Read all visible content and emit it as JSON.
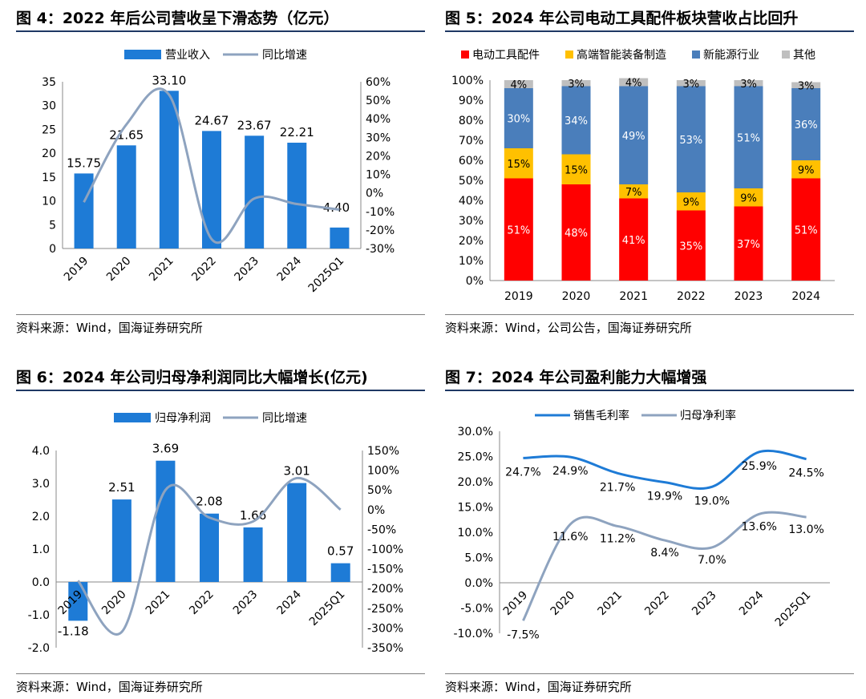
{
  "colors": {
    "bar": "#1e7bd6",
    "growth_line": "#8ea3bf",
    "red": "#ff0000",
    "yellow": "#ffc000",
    "blue": "#4a7ebb",
    "gray": "#bfbfbf",
    "gross_margin": "#1e7bd6",
    "net_margin": "#8ea3bf"
  },
  "panels": [
    {
      "title": "图 4：2022 年后公司营收呈下滑态势（亿元）",
      "source": "资料来源：Wind，国海证券研究所"
    },
    {
      "title": "图 5：2024 年公司电动工具配件板块营收占比回升",
      "source": "资料来源：Wind，公司公告，国海证券研究所"
    },
    {
      "title": "图 6：2024 年公司归母净利润同比大幅增长(亿元)",
      "source": "资料来源：Wind，国海证券研究所"
    },
    {
      "title": "图 7：2024 年公司盈利能力大幅增强",
      "source": "资料来源：Wind，国海证券研究所"
    }
  ],
  "chart_data": [
    {
      "type": "bar",
      "categories": [
        "2019",
        "2020",
        "2021",
        "2022",
        "2023",
        "2024",
        "2025Q1"
      ],
      "series": [
        {
          "name": "营业收入",
          "type": "bar",
          "axis": "left",
          "values": [
            15.75,
            21.65,
            33.1,
            24.67,
            23.67,
            22.21,
            4.4
          ],
          "labels": [
            "15.75",
            "21.65",
            "33.10",
            "24.67",
            "23.67",
            "22.21",
            "4.40"
          ]
        },
        {
          "name": "同比增速",
          "type": "line",
          "axis": "right",
          "values": [
            -5,
            37,
            53,
            -25,
            -3,
            -6,
            -9
          ]
        }
      ],
      "ylim": [
        0,
        35
      ],
      "yticks": [
        "0",
        "5",
        "10",
        "15",
        "20",
        "25",
        "30",
        "35"
      ],
      "ylim_right": [
        -30,
        60
      ],
      "yticks_right": [
        "-30%",
        "-20%",
        "-10%",
        "0%",
        "10%",
        "20%",
        "30%",
        "40%",
        "50%",
        "60%"
      ],
      "legend": "top"
    },
    {
      "type": "bar",
      "stacked": true,
      "categories": [
        "2019",
        "2020",
        "2021",
        "2022",
        "2023",
        "2024"
      ],
      "series": [
        {
          "name": "电动工具配件",
          "values": [
            51,
            48,
            41,
            35,
            37,
            51
          ]
        },
        {
          "name": "高端智能装备制造",
          "values": [
            15,
            15,
            7,
            9,
            9,
            9
          ]
        },
        {
          "name": "新能源行业",
          "values": [
            30,
            34,
            49,
            53,
            51,
            36
          ]
        },
        {
          "name": "其他",
          "values": [
            4,
            3,
            4,
            3,
            3,
            3
          ]
        }
      ],
      "ylim": [
        0,
        100
      ],
      "yticks": [
        "0%",
        "10%",
        "20%",
        "30%",
        "40%",
        "50%",
        "60%",
        "70%",
        "80%",
        "90%",
        "100%"
      ],
      "legend": "top"
    },
    {
      "type": "bar",
      "categories": [
        "2019",
        "2020",
        "2021",
        "2022",
        "2023",
        "2024",
        "2025Q1"
      ],
      "series": [
        {
          "name": "归母净利润",
          "type": "bar",
          "axis": "left",
          "values": [
            -1.18,
            2.51,
            3.69,
            2.08,
            1.66,
            3.01,
            0.57
          ],
          "labels": [
            "-1.18",
            "2.51",
            "3.69",
            "2.08",
            "1.66",
            "3.01",
            "0.57"
          ]
        },
        {
          "name": "同比增速",
          "type": "line",
          "axis": "right",
          "values": [
            -180,
            -310,
            50,
            -20,
            -30,
            80,
            0
          ]
        }
      ],
      "ylim": [
        -2.0,
        4.0
      ],
      "yticks": [
        "-2.0",
        "-1.0",
        "0.0",
        "1.0",
        "2.0",
        "3.0",
        "4.0"
      ],
      "ylim_right": [
        -350,
        150
      ],
      "yticks_right": [
        "-350%",
        "-300%",
        "-250%",
        "-200%",
        "-150%",
        "-100%",
        "-50%",
        "0%",
        "50%",
        "100%",
        "150%"
      ],
      "legend": "top"
    },
    {
      "type": "line",
      "categories": [
        "2019",
        "2020",
        "2021",
        "2022",
        "2023",
        "2024",
        "2025Q1"
      ],
      "series": [
        {
          "name": "销售毛利率",
          "values": [
            24.7,
            24.9,
            21.7,
            19.9,
            19.0,
            25.9,
            24.5
          ],
          "labels": [
            "24.7%",
            "24.9%",
            "21.7%",
            "19.9%",
            "19.0%",
            "25.9%",
            "24.5%"
          ]
        },
        {
          "name": "归母净利率",
          "values": [
            -7.5,
            11.6,
            11.2,
            8.4,
            7.0,
            13.6,
            13.0
          ],
          "labels": [
            "-7.5%",
            "11.6%",
            "11.2%",
            "8.4%",
            "7.0%",
            "13.6%",
            "13.0%"
          ]
        }
      ],
      "ylim": [
        -10,
        30
      ],
      "yticks": [
        "-10.0%",
        "-5.0%",
        "0.0%",
        "5.0%",
        "10.0%",
        "15.0%",
        "20.0%",
        "25.0%",
        "30.0%"
      ],
      "legend": "top"
    }
  ]
}
